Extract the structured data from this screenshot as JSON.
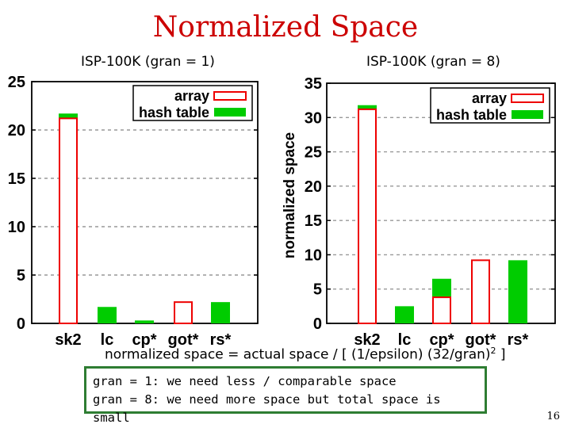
{
  "title": "Normalized Space",
  "formula": {
    "prefix": "normalized space = actual space / [ (1/epsilon) (32/gran)",
    "exponent": "2",
    "suffix": " ]"
  },
  "notes": [
    "gran = 1: we need less / comparable space",
    "gran = 8: we need more space but total space is small"
  ],
  "page_number": "16",
  "colors": {
    "array": "#ee0000",
    "hash_table": "#00cc00",
    "title": "#cc0000",
    "box_border": "#2e7d32"
  },
  "chart_data": [
    {
      "type": "bar",
      "title": "ISP-100K (gran = 1)",
      "ylabel": "",
      "ylim": [
        0,
        25
      ],
      "yticks": [
        "0",
        "5",
        "10",
        "15",
        "20",
        "25"
      ],
      "categories": [
        "sk2",
        "lc",
        "cp*",
        "got*",
        "rs*"
      ],
      "series": [
        {
          "name": "array",
          "values": [
            21.2,
            null,
            null,
            2.2,
            null
          ]
        },
        {
          "name": "hash table",
          "values": [
            21.7,
            1.7,
            0.3,
            null,
            2.2
          ]
        }
      ],
      "legend": "top-right",
      "grid": "horizontal dashed"
    },
    {
      "type": "bar",
      "title": "ISP-100K (gran = 8)",
      "ylabel": "normalized space",
      "ylim": [
        0,
        35
      ],
      "yticks": [
        "0",
        "5",
        "10",
        "15",
        "20",
        "25",
        "30",
        "35"
      ],
      "categories": [
        "sk2",
        "lc",
        "cp*",
        "got*",
        "rs*"
      ],
      "series": [
        {
          "name": "array",
          "values": [
            31.2,
            null,
            3.8,
            9.2,
            null
          ]
        },
        {
          "name": "hash table",
          "values": [
            31.8,
            2.5,
            6.5,
            null,
            9.2
          ]
        }
      ],
      "legend": "top-right",
      "grid": "horizontal dashed"
    }
  ]
}
